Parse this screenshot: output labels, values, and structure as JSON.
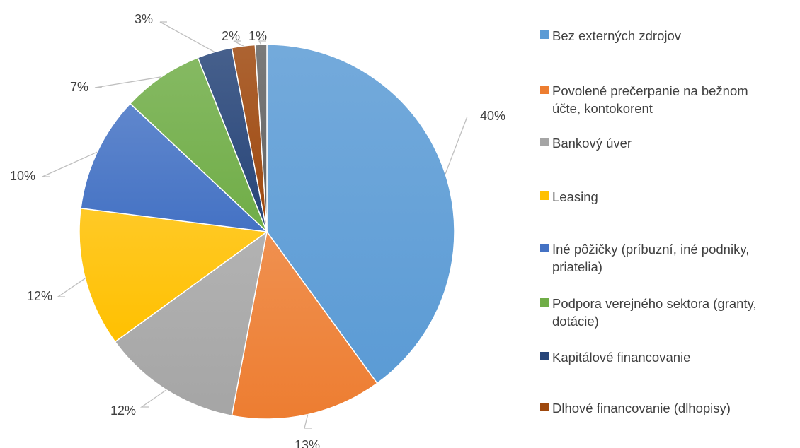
{
  "chart_data": {
    "type": "pie",
    "categories": [
      "Bez externých zdrojov",
      "Povolené prečerpanie na bežnom\núčte, kontokorent",
      "Bankový úver",
      "Leasing",
      "Iné pôžičky (príbuzní, iné podniky,\npriatelia)",
      "Podpora verejného sektora (granty,\ndotácie)",
      "Kapitálové financovanie",
      "Dlhové financovanie (dlhopisy)",
      ""
    ],
    "values": [
      40,
      13,
      12,
      12,
      10,
      7,
      3,
      2,
      1
    ],
    "data_labels": [
      "40%",
      "13%",
      "12%",
      "12%",
      "10%",
      "7%",
      "3%",
      "2%",
      "1%"
    ],
    "colors": [
      "#5B9BD5",
      "#ED7D31",
      "#A5A5A5",
      "#FFC000",
      "#4472C4",
      "#70AD47",
      "#264478",
      "#9E480E",
      "#636363"
    ],
    "legend_entries": [
      "Bez externých zdrojov",
      "Povolené prečerpanie na bežnom\núčte, kontokorent",
      "Bankový úver",
      "Leasing",
      "Iné pôžičky (príbuzní, iné podniky,\npriatelia)",
      "Podpora verejného sektora (granty,\ndotácie)",
      "Kapitálové financovanie",
      "Dlhové financovanie (dlhopisy)"
    ],
    "legend_position": "right",
    "start_angle": "top, clockwise"
  }
}
